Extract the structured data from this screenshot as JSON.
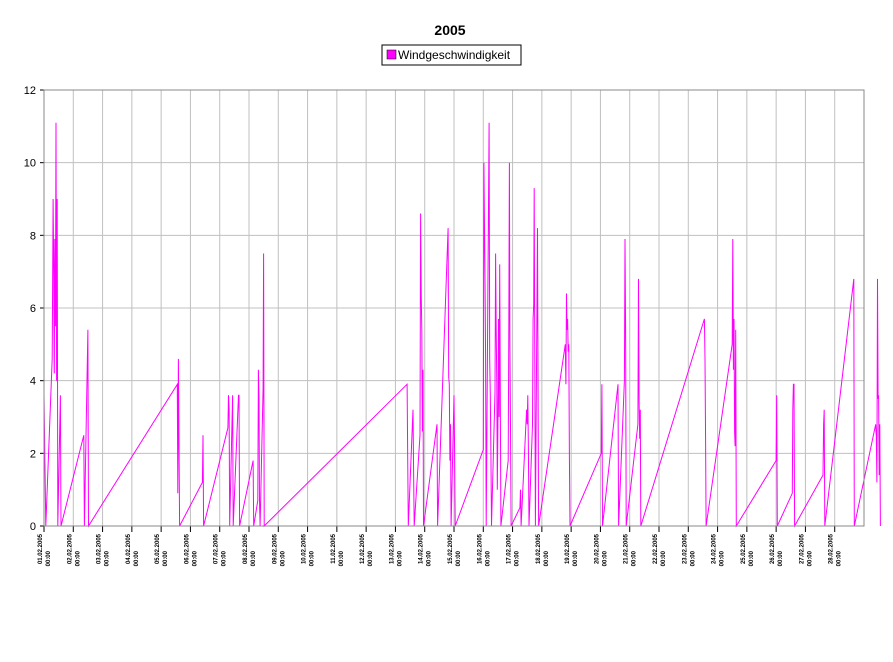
{
  "chart_data": {
    "type": "line",
    "title": "2005",
    "legend": {
      "position": "top",
      "entries": [
        "Windgeschwindigkeit"
      ]
    },
    "xlabel": "",
    "ylabel": "",
    "ylim": [
      0,
      12
    ],
    "yticks": [
      0,
      2,
      4,
      6,
      8,
      10,
      12
    ],
    "grid": true,
    "xlim_days": [
      1,
      29
    ],
    "xticks": [
      [
        "01.02.2005",
        "00:00"
      ],
      [
        "02.02.2005",
        "00:00"
      ],
      [
        "03.02.2005",
        "00:00"
      ],
      [
        "04.02.2005",
        "00:00"
      ],
      [
        "05.02.2005",
        "00:00"
      ],
      [
        "06.02.2005",
        "00:00"
      ],
      [
        "07.02.2005",
        "00:00"
      ],
      [
        "08.02.2005",
        "00:00"
      ],
      [
        "09.02.2005",
        "00:00"
      ],
      [
        "10.02.2005",
        "00:00"
      ],
      [
        "11.02.2005",
        "00:00"
      ],
      [
        "12.02.2005",
        "00:00"
      ],
      [
        "13.02.2005",
        "00:00"
      ],
      [
        "14.02.2005",
        "00:00"
      ],
      [
        "15.02.2005",
        "00:00"
      ],
      [
        "16.02.2005",
        "00:00"
      ],
      [
        "17.02.2005",
        "00:00"
      ],
      [
        "18.02.2005",
        "00:00"
      ],
      [
        "19.02.2005",
        "00:00"
      ],
      [
        "20.02.2005",
        "00:00"
      ],
      [
        "21.02.2005",
        "00:00"
      ],
      [
        "22.02.2005",
        "00:00"
      ],
      [
        "23.02.2005",
        "00:00"
      ],
      [
        "24.02.2005",
        "00:00"
      ],
      [
        "25.02.2005",
        "00:00"
      ],
      [
        "26.02.2005",
        "00:00"
      ],
      [
        "27.02.2005",
        "00:00"
      ],
      [
        "28.02.2005",
        "00:00"
      ]
    ],
    "series": [
      {
        "name": "Windgeschwindigkeit",
        "color": "#ff00ff",
        "points": [
          [
            1.0,
            3.6
          ],
          [
            1.03,
            1.8
          ],
          [
            1.06,
            0
          ],
          [
            1.28,
            4.6
          ],
          [
            1.31,
            9.0
          ],
          [
            1.33,
            7.2
          ],
          [
            1.35,
            4.2
          ],
          [
            1.37,
            7.9
          ],
          [
            1.39,
            5.5
          ],
          [
            1.41,
            11.1
          ],
          [
            1.43,
            4.0
          ],
          [
            1.45,
            9.0
          ],
          [
            1.47,
            0
          ],
          [
            1.56,
            3.6
          ],
          [
            1.58,
            0
          ],
          [
            2.36,
            2.5
          ],
          [
            2.38,
            0
          ],
          [
            2.5,
            5.4
          ],
          [
            2.52,
            0
          ],
          [
            5.55,
            3.9
          ],
          [
            5.57,
            0.9
          ],
          [
            5.59,
            4.6
          ],
          [
            5.61,
            2.3
          ],
          [
            5.63,
            0
          ],
          [
            6.41,
            1.2
          ],
          [
            6.43,
            2.5
          ],
          [
            6.45,
            0
          ],
          [
            7.28,
            2.7
          ],
          [
            7.3,
            3.6
          ],
          [
            7.32,
            3.2
          ],
          [
            7.34,
            0
          ],
          [
            7.44,
            3.6
          ],
          [
            7.46,
            0
          ],
          [
            7.64,
            3.6
          ],
          [
            7.66,
            3.6
          ],
          [
            7.68,
            0
          ],
          [
            8.14,
            1.8
          ],
          [
            8.16,
            0
          ],
          [
            8.3,
            0.7
          ],
          [
            8.32,
            4.3
          ],
          [
            8.34,
            3.5
          ],
          [
            8.36,
            0.7
          ],
          [
            8.38,
            0
          ],
          [
            8.48,
            3.8
          ],
          [
            8.5,
            7.5
          ],
          [
            8.52,
            0
          ],
          [
            13.4,
            3.9
          ],
          [
            13.42,
            1.9
          ],
          [
            13.44,
            0
          ],
          [
            13.6,
            3.2
          ],
          [
            13.62,
            1.5
          ],
          [
            13.64,
            0
          ],
          [
            13.84,
            2.5
          ],
          [
            13.86,
            8.6
          ],
          [
            13.88,
            6.4
          ],
          [
            13.9,
            5.4
          ],
          [
            13.92,
            2.6
          ],
          [
            13.94,
            4.3
          ],
          [
            13.96,
            0
          ],
          [
            14.42,
            2.8
          ],
          [
            14.44,
            0
          ],
          [
            14.8,
            8.2
          ],
          [
            14.82,
            4.1
          ],
          [
            14.84,
            3.9
          ],
          [
            14.86,
            1.8
          ],
          [
            14.88,
            2.8
          ],
          [
            14.9,
            0
          ],
          [
            15.0,
            3.6
          ],
          [
            15.02,
            2.1
          ],
          [
            15.04,
            0
          ],
          [
            16.0,
            2.1
          ],
          [
            16.02,
            10.0
          ],
          [
            16.04,
            8.2
          ],
          [
            16.06,
            6.8
          ],
          [
            16.08,
            4.6
          ],
          [
            16.1,
            0
          ],
          [
            16.2,
            11.1
          ],
          [
            16.22,
            4.6
          ],
          [
            16.24,
            3.6
          ],
          [
            16.26,
            2.0
          ],
          [
            16.28,
            0
          ],
          [
            16.4,
            3.7
          ],
          [
            16.42,
            7.5
          ],
          [
            16.44,
            5.4
          ],
          [
            16.46,
            3.9
          ],
          [
            16.48,
            1.0
          ],
          [
            16.5,
            2.8
          ],
          [
            16.52,
            5.7
          ],
          [
            16.54,
            3.0
          ],
          [
            16.56,
            7.2
          ],
          [
            16.58,
            3.6
          ],
          [
            16.6,
            0
          ],
          [
            16.85,
            1.8
          ],
          [
            16.87,
            5.4
          ],
          [
            16.89,
            10.0
          ],
          [
            16.91,
            5.0
          ],
          [
            16.93,
            2.7
          ],
          [
            16.95,
            0
          ],
          [
            17.25,
            0.5
          ],
          [
            17.27,
            1.0
          ],
          [
            17.29,
            0
          ],
          [
            17.48,
            3.2
          ],
          [
            17.5,
            2.8
          ],
          [
            17.52,
            3.6
          ],
          [
            17.54,
            2.1
          ],
          [
            17.56,
            0
          ],
          [
            17.68,
            2.8
          ],
          [
            17.7,
            5.7
          ],
          [
            17.72,
            6.1
          ],
          [
            17.74,
            9.3
          ],
          [
            17.76,
            4.5
          ],
          [
            17.78,
            0
          ],
          [
            17.85,
            8.2
          ],
          [
            17.87,
            4.3
          ],
          [
            17.89,
            0
          ],
          [
            18.8,
            5.0
          ],
          [
            18.82,
            3.9
          ],
          [
            18.84,
            6.4
          ],
          [
            18.86,
            5.4
          ],
          [
            18.88,
            5.7
          ],
          [
            18.9,
            4.8
          ],
          [
            18.92,
            5.0
          ],
          [
            18.94,
            1.9
          ],
          [
            18.96,
            0
          ],
          [
            20.03,
            2.0
          ],
          [
            20.05,
            3.9
          ],
          [
            20.07,
            0
          ],
          [
            20.6,
            3.9
          ],
          [
            20.62,
            0
          ],
          [
            20.82,
            4.0
          ],
          [
            20.84,
            7.9
          ],
          [
            20.86,
            5.4
          ],
          [
            20.88,
            0
          ],
          [
            21.28,
            2.8
          ],
          [
            21.3,
            6.8
          ],
          [
            21.32,
            3.4
          ],
          [
            21.34,
            2.4
          ],
          [
            21.36,
            3.2
          ],
          [
            21.38,
            0
          ],
          [
            23.55,
            5.7
          ],
          [
            23.57,
            4.6
          ],
          [
            23.59,
            2.3
          ],
          [
            23.61,
            0
          ],
          [
            24.5,
            5.0
          ],
          [
            24.52,
            7.9
          ],
          [
            24.54,
            4.3
          ],
          [
            24.56,
            5.7
          ],
          [
            24.58,
            2.6
          ],
          [
            24.6,
            2.2
          ],
          [
            24.62,
            5.4
          ],
          [
            24.64,
            0
          ],
          [
            26.0,
            1.8
          ],
          [
            26.02,
            3.6
          ],
          [
            26.04,
            0
          ],
          [
            26.55,
            0.9
          ],
          [
            26.57,
            3.2
          ],
          [
            26.59,
            3.9
          ],
          [
            26.61,
            3.9
          ],
          [
            26.63,
            0
          ],
          [
            27.6,
            1.4
          ],
          [
            27.62,
            2.8
          ],
          [
            27.64,
            3.2
          ],
          [
            27.66,
            0
          ],
          [
            28.65,
            6.8
          ],
          [
            28.67,
            0
          ],
          [
            29.4,
            2.8
          ],
          [
            29.42,
            2.5
          ],
          [
            29.44,
            1.2
          ],
          [
            29.46,
            6.8
          ],
          [
            29.48,
            3.5
          ],
          [
            29.5,
            3.6
          ],
          [
            29.52,
            1.4
          ],
          [
            29.54,
            2.8
          ],
          [
            29.56,
            0
          ]
        ]
      }
    ]
  }
}
